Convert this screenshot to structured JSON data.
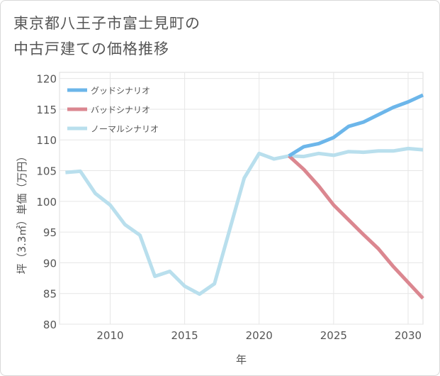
{
  "title_lines": [
    "東京都八王子市富士見町の",
    "中古戸建ての価格推移"
  ],
  "chart_data": {
    "type": "line",
    "title": "東京都八王子市富士見町の中古戸建ての価格推移",
    "xlabel": "年",
    "ylabel": "坪（3.3㎡）単価（万円）",
    "xlim": [
      2006.6,
      2031
    ],
    "ylim": [
      80,
      121
    ],
    "x_ticks": [
      2010,
      2015,
      2020,
      2025,
      2030
    ],
    "y_ticks": [
      80,
      85,
      90,
      95,
      100,
      105,
      110,
      115,
      120
    ],
    "grid": true,
    "legend_position": "top-left",
    "series": [
      {
        "name": "グッドシナリオ",
        "color": "#6cb6ea",
        "points": [
          [
            2022,
            107.4
          ],
          [
            2023,
            108.9
          ],
          [
            2024,
            109.4
          ],
          [
            2025,
            110.4
          ],
          [
            2026,
            112.2
          ],
          [
            2027,
            112.9
          ],
          [
            2028,
            114.1
          ],
          [
            2029,
            115.3
          ],
          [
            2030,
            116.2
          ],
          [
            2031,
            117.3
          ]
        ]
      },
      {
        "name": "バッドシナリオ",
        "color": "#db8790",
        "points": [
          [
            2022,
            107.4
          ],
          [
            2023,
            105.2
          ],
          [
            2024,
            102.5
          ],
          [
            2025,
            99.4
          ],
          [
            2026,
            97.0
          ],
          [
            2027,
            94.6
          ],
          [
            2028,
            92.3
          ],
          [
            2029,
            89.4
          ],
          [
            2030,
            86.8
          ],
          [
            2031,
            84.2
          ]
        ]
      },
      {
        "name": "ノーマルシナリオ",
        "color": "#b9dfed",
        "points": [
          [
            2007,
            104.7
          ],
          [
            2008,
            104.9
          ],
          [
            2009,
            101.3
          ],
          [
            2010,
            99.4
          ],
          [
            2011,
            96.2
          ],
          [
            2012,
            94.5
          ],
          [
            2013,
            87.8
          ],
          [
            2014,
            88.6
          ],
          [
            2015,
            86.2
          ],
          [
            2016,
            84.9
          ],
          [
            2017,
            86.6
          ],
          [
            2018,
            95.2
          ],
          [
            2019,
            103.8
          ],
          [
            2020,
            107.8
          ],
          [
            2021,
            106.9
          ],
          [
            2022,
            107.4
          ],
          [
            2023,
            107.3
          ],
          [
            2024,
            107.8
          ],
          [
            2025,
            107.5
          ],
          [
            2026,
            108.1
          ],
          [
            2027,
            108.0
          ],
          [
            2028,
            108.2
          ],
          [
            2029,
            108.2
          ],
          [
            2030,
            108.6
          ],
          [
            2031,
            108.4
          ]
        ]
      }
    ]
  }
}
